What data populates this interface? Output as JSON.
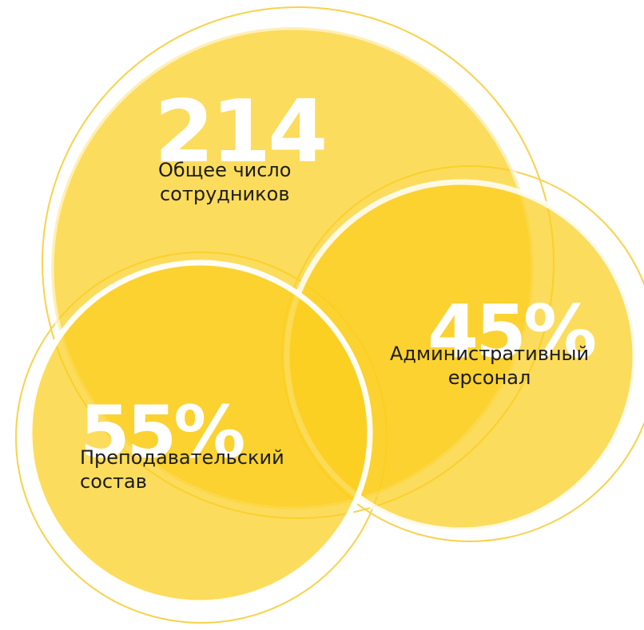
{
  "colors": {
    "circle_fill": "#fbcf1f",
    "circle_stroke": "#ffffff",
    "outer_ring": "#f8d24c",
    "number_color": "#ffffff",
    "text_color": "#1c1c1c"
  },
  "circles": {
    "total": {
      "value": "214",
      "caption_line1": "Общее число",
      "caption_line2": "сотрудников"
    },
    "admin": {
      "value": "45%",
      "caption_line1": "Административный",
      "caption_line2": "ерсонал"
    },
    "teaching": {
      "value": "55%",
      "caption_line1": "Преподавательский",
      "caption_line2": "состав"
    }
  }
}
